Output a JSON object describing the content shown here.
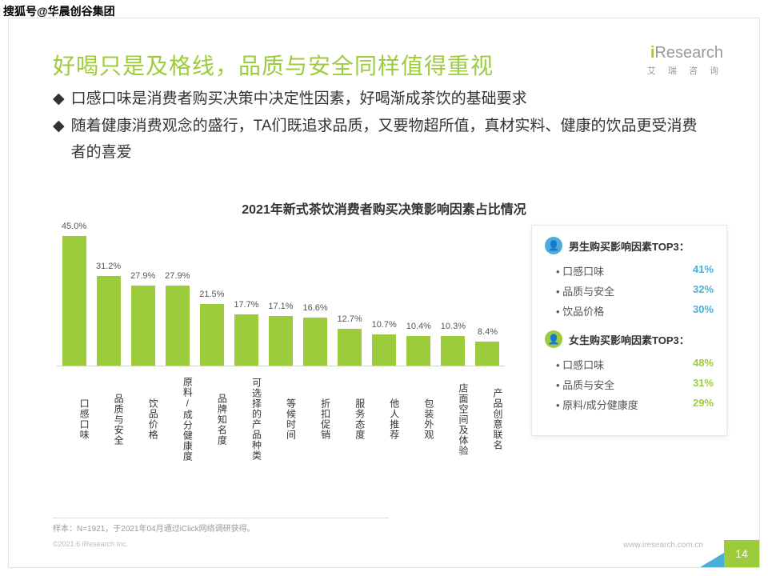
{
  "watermark": "搜狐号@华晨创谷集团",
  "title": "好喝只是及格线，品质与安全同样值得重视",
  "logo": {
    "text": "iResearch",
    "subtitle": "艾 瑞 咨 询"
  },
  "bullets": [
    "口感口味是消费者购买决策中决定性因素，好喝渐成茶饮的基础要求",
    "随着健康消费观念的盛行，TA们既追求品质，又要物超所值，真材实料、健康的饮品更受消费者的喜爱"
  ],
  "chart": {
    "title": "2021年新式茶饮消费者购买决策影响因素占比情况",
    "type": "bar",
    "bar_color": "#9ccc3c",
    "ymax": 50,
    "categories": [
      "口感口味",
      "品质与安全",
      "饮品价格",
      "原料/成分健康度",
      "品牌知名度",
      "可选择的产品种类",
      "等候时间",
      "折扣促销",
      "服务态度",
      "他人推荐",
      "包装外观",
      "店面空间及体验",
      "产品创意联名"
    ],
    "values": [
      45.0,
      31.2,
      27.9,
      27.9,
      21.5,
      17.7,
      17.1,
      16.6,
      12.7,
      10.7,
      10.4,
      10.3,
      8.4
    ]
  },
  "side_panel": {
    "sections": [
      {
        "icon_bg": "#4aaed9",
        "title": "男生购买影响因素TOP3：",
        "color": "#4aaed9",
        "rows": [
          {
            "label": "口感口味",
            "value": "41%"
          },
          {
            "label": "品质与安全",
            "value": "32%"
          },
          {
            "label": "饮品价格",
            "value": "30%"
          }
        ]
      },
      {
        "icon_bg": "#9ccc3c",
        "title": "女生购买影响因素TOP3：",
        "color": "#9ccc3c",
        "rows": [
          {
            "label": "口感口味",
            "value": "48%"
          },
          {
            "label": "品质与安全",
            "value": "31%"
          },
          {
            "label": "原料/成分健康度",
            "value": "29%"
          }
        ]
      }
    ]
  },
  "note": "样本：N=1921，于2021年04月通过iClick网络调研获得。",
  "copyright": "©2021.6 iResearch Inc.",
  "website": "www.iresearch.com.cn",
  "page": "14"
}
